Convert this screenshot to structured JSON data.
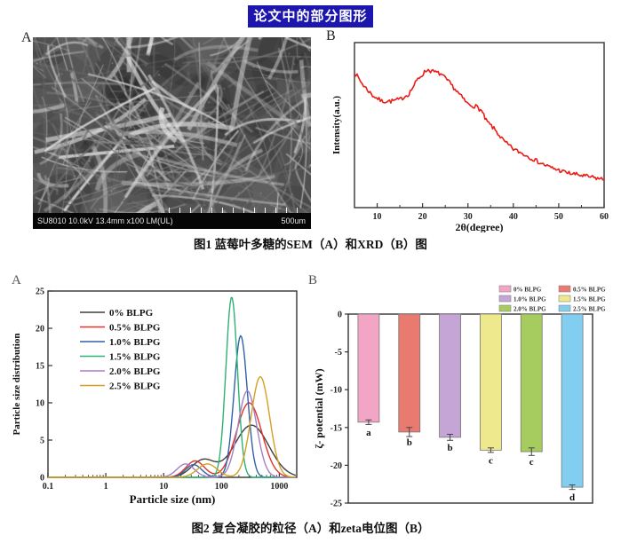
{
  "page": {
    "title": "论文中的部分图形",
    "title_bg": "#1c16ae",
    "title_color": "#ffffff"
  },
  "figure1": {
    "label_a": "A",
    "label_b": "B",
    "caption": "图1 蓝莓叶多糖的SEM（A）和XRD（B）图",
    "sem": {
      "status_bar": "SU8010 10.0kV 13.4mm x100 LM(UL)",
      "scale_label": "500um"
    }
  },
  "figure2": {
    "label_a": "A",
    "label_b": "B",
    "caption": "图2 复合凝胶的粒径（A）和zeta电位图（B）"
  },
  "chart_data": [
    {
      "id": "xrd",
      "type": "line",
      "title": "",
      "xlabel": "2θ(degree)",
      "ylabel": "Intensity(a.u.)",
      "xlim": [
        5,
        60
      ],
      "xticks": [
        10,
        20,
        30,
        40,
        50,
        60
      ],
      "ylim": [
        0,
        1
      ],
      "line_color": "#ea1c14",
      "noise": 0.013,
      "x": [
        5,
        7,
        9,
        11,
        13,
        15,
        17,
        19,
        21,
        22,
        24,
        26,
        28,
        30,
        32,
        33,
        34,
        36,
        38,
        40,
        42,
        44,
        46,
        48,
        50,
        52,
        55,
        58,
        60
      ],
      "y": [
        0.82,
        0.74,
        0.68,
        0.645,
        0.645,
        0.655,
        0.69,
        0.78,
        0.836,
        0.827,
        0.81,
        0.755,
        0.69,
        0.627,
        0.61,
        0.585,
        0.527,
        0.47,
        0.4,
        0.355,
        0.327,
        0.3,
        0.27,
        0.245,
        0.227,
        0.21,
        0.195,
        0.18,
        0.17
      ]
    },
    {
      "id": "particle",
      "type": "line",
      "title": "",
      "xlabel": "Particle size (nm)",
      "ylabel": "Particle size distribution",
      "x_scale": "log",
      "xlim": [
        0.1,
        2000
      ],
      "xtick_labels": [
        "0.1",
        "1",
        "10",
        "100",
        "1000"
      ],
      "xticks": [
        0.1,
        1,
        10,
        100,
        1000
      ],
      "ylim": [
        0,
        25
      ],
      "yticks": [
        0,
        5,
        10,
        15,
        20,
        25
      ],
      "legend_position": "upper left",
      "series": [
        {
          "name": "0% BLPG",
          "color": "#3f3f3f",
          "peaks": [
            {
              "center": 48,
              "height": 2.3,
              "width": 0.2
            },
            {
              "center": 330,
              "height": 7.0,
              "width": 0.3
            }
          ]
        },
        {
          "name": "0.5% BLPG",
          "color": "#e0332a",
          "peaks": [
            {
              "center": 35,
              "height": 2.2,
              "width": 0.16
            },
            {
              "center": 300,
              "height": 10.0,
              "width": 0.22
            }
          ]
        },
        {
          "name": "1.0% BLPG",
          "color": "#2f62a8",
          "peaks": [
            {
              "center": 33,
              "height": 1.7,
              "width": 0.14
            },
            {
              "center": 215,
              "height": 19.0,
              "width": 0.115
            }
          ]
        },
        {
          "name": "1.5% BLPG",
          "color": "#2eb273",
          "peaks": [
            {
              "center": 150,
              "height": 24.2,
              "width": 0.1
            }
          ]
        },
        {
          "name": "2.0% BLPG",
          "color": "#a57fc5",
          "peaks": [
            {
              "center": 24,
              "height": 1.8,
              "width": 0.15
            },
            {
              "center": 280,
              "height": 11.6,
              "width": 0.16
            }
          ]
        },
        {
          "name": "2.5% BLPG",
          "color": "#d3a021",
          "peaks": [
            {
              "center": 57,
              "height": 1.8,
              "width": 0.17
            },
            {
              "center": 470,
              "height": 13.5,
              "width": 0.16
            }
          ]
        }
      ]
    },
    {
      "id": "zeta",
      "type": "bar",
      "title": "",
      "xlabel": "",
      "ylabel": "ζ- potential (mW)",
      "ylim": [
        -25,
        0
      ],
      "yticks": [
        0,
        -5,
        -10,
        -15,
        -20,
        -25
      ],
      "legend_position": "upper right",
      "categories": [
        "0% BLPG",
        "0.5% BLPG",
        "1.0% BLPG",
        "1.5% BLPG",
        "2.0% BLPG",
        "2.5% BLPG"
      ],
      "values": [
        -14.3,
        -15.6,
        -16.3,
        -18.0,
        -18.2,
        -22.9
      ],
      "errors": [
        0.3,
        0.6,
        0.4,
        0.3,
        0.5,
        0.3
      ],
      "sig_letters": [
        "a",
        "b",
        "b",
        "c",
        "c",
        "d"
      ],
      "bar_colors": [
        "#f3a5c6",
        "#e97a6f",
        "#c4a5d6",
        "#efe98d",
        "#a6cb5e",
        "#82cef0"
      ]
    }
  ]
}
